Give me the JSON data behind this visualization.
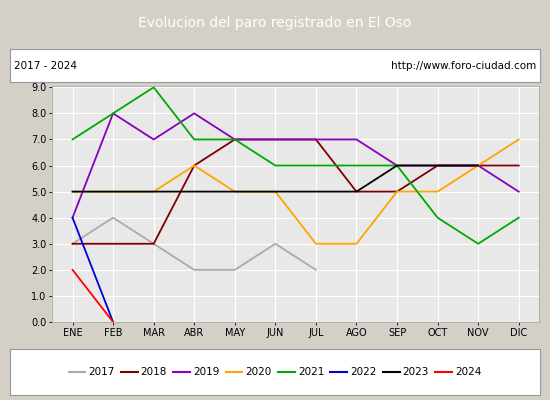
{
  "title": "Evolucion del paro registrado en El Oso",
  "subtitle_left": "2017 - 2024",
  "subtitle_right": "http://www.foro-ciudad.com",
  "x_labels": [
    "ENE",
    "FEB",
    "MAR",
    "ABR",
    "MAY",
    "JUN",
    "JUL",
    "AGO",
    "SEP",
    "OCT",
    "NOV",
    "DIC"
  ],
  "ylim": [
    0.0,
    9.0
  ],
  "series_2017": [
    3.0,
    4.0,
    3.0,
    2.0,
    2.0,
    3.0,
    2.0,
    null,
    null,
    null,
    null,
    null
  ],
  "series_2018": [
    3.0,
    3.0,
    3.0,
    6.0,
    7.0,
    7.0,
    7.0,
    5.0,
    5.0,
    6.0,
    6.0,
    6.0
  ],
  "series_2019": [
    4.0,
    8.0,
    7.0,
    8.0,
    7.0,
    7.0,
    7.0,
    7.0,
    6.0,
    6.0,
    6.0,
    5.0
  ],
  "series_2020": [
    5.0,
    5.0,
    5.0,
    6.0,
    5.0,
    5.0,
    3.0,
    3.0,
    5.0,
    5.0,
    6.0,
    7.0
  ],
  "series_2021": [
    7.0,
    8.0,
    9.0,
    7.0,
    7.0,
    6.0,
    6.0,
    6.0,
    6.0,
    4.0,
    3.0,
    4.0
  ],
  "series_2022": [
    4.0,
    0.0,
    null,
    null,
    null,
    null,
    null,
    null,
    null,
    null,
    null,
    null
  ],
  "series_2023": [
    5.0,
    5.0,
    5.0,
    5.0,
    5.0,
    5.0,
    5.0,
    5.0,
    6.0,
    6.0,
    6.0,
    null
  ],
  "series_2024": [
    2.0,
    0.0,
    null,
    null,
    null,
    null,
    null,
    null,
    null,
    null,
    null,
    null
  ],
  "colors": {
    "2017": "#aaaaaa",
    "2018": "#800000",
    "2019": "#8800bb",
    "2020": "#ffa500",
    "2021": "#00aa00",
    "2022": "#0000dd",
    "2023": "#000000",
    "2024": "#ff0000"
  },
  "fig_bg": "#d4d0c8",
  "plot_bg": "#e8e8e8",
  "title_bg": "#4472c4",
  "title_color": "#ffffff",
  "grid_color": "#ffffff",
  "subtitle_box_color": "#ffffff",
  "legend_box_color": "#ffffff"
}
